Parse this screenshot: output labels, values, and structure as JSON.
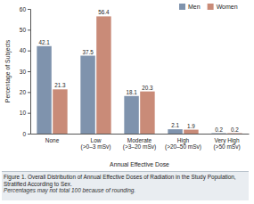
{
  "chart_data": {
    "type": "bar",
    "title": "Figure 1. Overall Distribution of Annual Effective Doses of Radiation in the Study Population, Stratified According to Sex.",
    "subtitle": "Percentages may not total 100 because of rounding.",
    "x_label": "Annual Effective Dose",
    "y_label": "Percentage of Subjects",
    "categories": [
      "None",
      "Low (>0–3 mSv)",
      "Moderate (>3–20 mSv)",
      "High (>20–50 mSv)",
      "Very High (>50 mSv)"
    ],
    "series": [
      {
        "name": "Men",
        "color": "#7f93ad",
        "values": [
          42.1,
          37.5,
          18.1,
          2.1,
          0.2
        ]
      },
      {
        "name": "Women",
        "color": "#c98b78",
        "values": [
          21.3,
          56.4,
          20.3,
          1.9,
          0.2
        ]
      }
    ],
    "ylim": [
      0,
      60
    ],
    "yticks": [
      0,
      10,
      20,
      30,
      40,
      50,
      60
    ],
    "grid": false,
    "legend": "top-right",
    "data_labels": true
  }
}
